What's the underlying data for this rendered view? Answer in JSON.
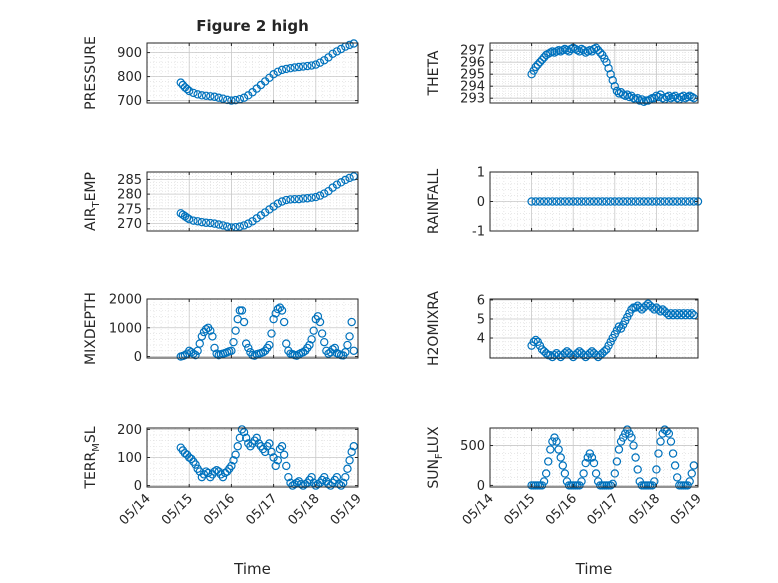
{
  "figure": {
    "title": "Figure 2 high",
    "xlabel": "Time"
  },
  "chart_data": [
    {
      "id": "pressure",
      "type": "scatter",
      "ylabel": "PRESSURE",
      "ylabel_sub": "",
      "ylim": [
        690,
        940
      ],
      "yticks": [
        700,
        800,
        900
      ],
      "marker_color": "#0072BD",
      "xlim": [
        "05/14",
        "05/19"
      ],
      "xticks": [
        "05/14",
        "05/15",
        "05/16",
        "05/17",
        "05/18",
        "05/19"
      ],
      "x": [
        14.8,
        14.85,
        14.9,
        14.95,
        15.0,
        15.1,
        15.2,
        15.3,
        15.4,
        15.5,
        15.6,
        15.7,
        15.8,
        15.9,
        16.0,
        16.1,
        16.2,
        16.3,
        16.4,
        16.5,
        16.6,
        16.7,
        16.8,
        16.9,
        17.0,
        17.1,
        17.2,
        17.3,
        17.4,
        17.5,
        17.6,
        17.7,
        17.8,
        17.9,
        18.0,
        18.1,
        18.2,
        18.3,
        18.4,
        18.5,
        18.6,
        18.7,
        18.8,
        18.9
      ],
      "y": [
        775,
        765,
        755,
        748,
        740,
        732,
        726,
        722,
        720,
        718,
        716,
        712,
        708,
        703,
        700,
        702,
        706,
        712,
        722,
        735,
        750,
        765,
        780,
        795,
        810,
        820,
        828,
        832,
        835,
        838,
        840,
        842,
        844,
        846,
        850,
        858,
        868,
        880,
        895,
        905,
        915,
        925,
        932,
        938
      ]
    },
    {
      "id": "theta",
      "type": "scatter",
      "ylabel": "THETA",
      "ylabel_sub": "",
      "ylim": [
        292.6,
        297.6
      ],
      "yticks": [
        293,
        294,
        295,
        296,
        297
      ],
      "marker_color": "#0072BD",
      "xlim": [
        "05/14",
        "05/19"
      ],
      "xticks": [
        "05/14",
        "05/15",
        "05/16",
        "05/17",
        "05/18",
        "05/19"
      ],
      "x": [
        15.0,
        15.05,
        15.1,
        15.15,
        15.2,
        15.25,
        15.3,
        15.35,
        15.4,
        15.45,
        15.5,
        15.55,
        15.6,
        15.65,
        15.7,
        15.75,
        15.8,
        15.85,
        15.9,
        15.95,
        16.0,
        16.05,
        16.1,
        16.15,
        16.2,
        16.25,
        16.3,
        16.35,
        16.4,
        16.45,
        16.5,
        16.55,
        16.6,
        16.65,
        16.7,
        16.75,
        16.8,
        16.85,
        16.9,
        16.95,
        17.0,
        17.05,
        17.1,
        17.15,
        17.2,
        17.25,
        17.3,
        17.35,
        17.4,
        17.45,
        17.5,
        17.55,
        17.6,
        17.65,
        17.7,
        17.75,
        17.8,
        17.85,
        17.9,
        17.95,
        18.0,
        18.05,
        18.1,
        18.15,
        18.2,
        18.25,
        18.3,
        18.35,
        18.4,
        18.45,
        18.5,
        18.55,
        18.6,
        18.65,
        18.7,
        18.75,
        18.8,
        18.85,
        18.9
      ],
      "y": [
        295.0,
        295.3,
        295.6,
        295.8,
        296.0,
        296.2,
        296.4,
        296.6,
        296.7,
        296.8,
        296.9,
        296.8,
        296.9,
        297.0,
        296.9,
        297.0,
        297.1,
        297.0,
        296.9,
        297.1,
        297.2,
        297.1,
        297.0,
        296.9,
        297.1,
        297.0,
        296.8,
        296.9,
        297.0,
        296.9,
        297.1,
        297.2,
        297.0,
        296.8,
        296.6,
        296.3,
        296.0,
        295.5,
        295.0,
        294.5,
        294.0,
        293.6,
        293.4,
        293.5,
        293.3,
        293.2,
        293.3,
        293.1,
        293.2,
        293.0,
        292.9,
        293.0,
        292.8,
        292.9,
        292.7,
        292.8,
        292.8,
        292.9,
        293.0,
        293.0,
        293.2,
        293.1,
        293.3,
        293.0,
        292.9,
        293.1,
        293.2,
        293.0,
        293.1,
        293.2,
        293.0,
        292.9,
        293.1,
        293.2,
        293.0,
        293.1,
        293.2,
        293.1,
        293.0
      ]
    },
    {
      "id": "air_temp",
      "type": "scatter",
      "ylabel": "AIR",
      "ylabel_sub": "T",
      "ylabel_suffix": "EMP",
      "ylim": [
        267.5,
        287.5
      ],
      "yticks": [
        270,
        275,
        280,
        285
      ],
      "marker_color": "#0072BD",
      "xlim": [
        "05/14",
        "05/19"
      ],
      "xticks": [
        "05/14",
        "05/15",
        "05/16",
        "05/17",
        "05/18",
        "05/19"
      ],
      "x": [
        14.8,
        14.85,
        14.9,
        14.95,
        15.0,
        15.1,
        15.2,
        15.3,
        15.4,
        15.5,
        15.6,
        15.7,
        15.8,
        15.9,
        16.0,
        16.1,
        16.2,
        16.3,
        16.4,
        16.5,
        16.6,
        16.7,
        16.8,
        16.9,
        17.0,
        17.1,
        17.2,
        17.3,
        17.4,
        17.5,
        17.6,
        17.7,
        17.8,
        17.9,
        18.0,
        18.1,
        18.2,
        18.3,
        18.4,
        18.5,
        18.6,
        18.7,
        18.8,
        18.9
      ],
      "y": [
        273.5,
        273.0,
        272.5,
        272.0,
        271.5,
        271.0,
        270.8,
        270.5,
        270.3,
        270.2,
        270.0,
        269.7,
        269.4,
        269.0,
        268.7,
        268.8,
        269.0,
        269.4,
        270.0,
        270.8,
        271.8,
        272.8,
        273.8,
        274.8,
        275.8,
        276.8,
        277.5,
        278.0,
        278.2,
        278.3,
        278.3,
        278.5,
        278.6,
        278.8,
        279.0,
        279.5,
        280.2,
        281.0,
        282.2,
        283.2,
        284.0,
        284.8,
        285.5,
        286.0
      ]
    },
    {
      "id": "rainfall",
      "type": "scatter",
      "ylabel": "RAINFALL",
      "ylabel_sub": "",
      "ylim": [
        -1,
        1
      ],
      "yticks": [
        -1,
        0,
        1
      ],
      "marker_color": "#0072BD",
      "xlim": [
        "05/14",
        "05/19"
      ],
      "xticks": [
        "05/14",
        "05/15",
        "05/16",
        "05/17",
        "05/18",
        "05/19"
      ],
      "x": [
        15.0,
        15.1,
        15.2,
        15.3,
        15.4,
        15.5,
        15.6,
        15.7,
        15.8,
        15.9,
        16.0,
        16.1,
        16.2,
        16.3,
        16.4,
        16.5,
        16.6,
        16.7,
        16.8,
        16.9,
        17.0,
        17.1,
        17.2,
        17.3,
        17.4,
        17.5,
        17.6,
        17.7,
        17.8,
        17.9,
        18.0,
        18.1,
        18.2,
        18.3,
        18.4,
        18.5,
        18.6,
        18.7,
        18.8,
        18.9,
        19.0
      ],
      "y": [
        0,
        0,
        0,
        0,
        0,
        0,
        0,
        0,
        0,
        0,
        0,
        0,
        0,
        0,
        0,
        0,
        0,
        0,
        0,
        0,
        0,
        0,
        0,
        0,
        0,
        0,
        0,
        0,
        0,
        0,
        0,
        0,
        0,
        0,
        0,
        0,
        0,
        0,
        0,
        0,
        0
      ]
    },
    {
      "id": "mixdepth",
      "type": "scatter",
      "ylabel": "MIXDEPTH",
      "ylabel_sub": "",
      "ylim": [
        -50,
        2000
      ],
      "yticks": [
        0,
        1000,
        2000
      ],
      "marker_color": "#0072BD",
      "xlim": [
        "05/14",
        "05/19"
      ],
      "xticks": [
        "05/14",
        "05/15",
        "05/16",
        "05/17",
        "05/18",
        "05/19"
      ],
      "x": [
        14.8,
        14.85,
        14.9,
        14.95,
        15.0,
        15.05,
        15.1,
        15.15,
        15.2,
        15.25,
        15.3,
        15.35,
        15.4,
        15.45,
        15.5,
        15.55,
        15.6,
        15.65,
        15.7,
        15.75,
        15.8,
        15.85,
        15.9,
        15.95,
        16.0,
        16.05,
        16.1,
        16.15,
        16.2,
        16.25,
        16.3,
        16.35,
        16.4,
        16.45,
        16.5,
        16.55,
        16.6,
        16.65,
        16.7,
        16.75,
        16.8,
        16.85,
        16.9,
        16.95,
        17.0,
        17.05,
        17.1,
        17.15,
        17.2,
        17.25,
        17.3,
        17.35,
        17.4,
        17.45,
        17.5,
        17.55,
        17.6,
        17.65,
        17.7,
        17.75,
        17.8,
        17.85,
        17.9,
        17.95,
        18.0,
        18.05,
        18.1,
        18.15,
        18.2,
        18.25,
        18.3,
        18.35,
        18.4,
        18.45,
        18.5,
        18.55,
        18.6,
        18.65,
        18.7,
        18.75,
        18.8,
        18.85,
        18.9
      ],
      "y": [
        0,
        20,
        50,
        100,
        200,
        150,
        100,
        50,
        200,
        450,
        700,
        850,
        950,
        1000,
        900,
        700,
        300,
        100,
        50,
        80,
        100,
        120,
        150,
        180,
        200,
        500,
        900,
        1300,
        1600,
        1600,
        1200,
        450,
        300,
        150,
        50,
        30,
        80,
        100,
        120,
        150,
        200,
        300,
        400,
        800,
        1300,
        1500,
        1650,
        1700,
        1600,
        1200,
        450,
        200,
        100,
        80,
        50,
        30,
        80,
        120,
        150,
        200,
        300,
        400,
        600,
        900,
        1300,
        1400,
        1200,
        800,
        500,
        200,
        100,
        150,
        250,
        300,
        120,
        80,
        50,
        40,
        150,
        400,
        700,
        1200,
        200
      ]
    },
    {
      "id": "h2omixra",
      "type": "scatter",
      "ylabel": "H2OMIXRA",
      "ylabel_sub": "",
      "ylim": [
        2.95,
        6.05
      ],
      "yticks": [
        4,
        5,
        6
      ],
      "marker_color": "#0072BD",
      "xlim": [
        "05/14",
        "05/19"
      ],
      "xticks": [
        "05/14",
        "05/15",
        "05/16",
        "05/17",
        "05/18",
        "05/19"
      ],
      "x": [
        15.0,
        15.05,
        15.1,
        15.15,
        15.2,
        15.25,
        15.3,
        15.35,
        15.4,
        15.45,
        15.5,
        15.55,
        15.6,
        15.65,
        15.7,
        15.75,
        15.8,
        15.85,
        15.9,
        15.95,
        16.0,
        16.05,
        16.1,
        16.15,
        16.2,
        16.25,
        16.3,
        16.35,
        16.4,
        16.45,
        16.5,
        16.55,
        16.6,
        16.65,
        16.7,
        16.75,
        16.8,
        16.85,
        16.9,
        16.95,
        17.0,
        17.05,
        17.1,
        17.15,
        17.2,
        17.25,
        17.3,
        17.35,
        17.4,
        17.45,
        17.5,
        17.55,
        17.6,
        17.65,
        17.7,
        17.75,
        17.8,
        17.85,
        17.9,
        17.95,
        18.0,
        18.05,
        18.1,
        18.15,
        18.2,
        18.25,
        18.3,
        18.35,
        18.4,
        18.45,
        18.5,
        18.55,
        18.6,
        18.65,
        18.7,
        18.75,
        18.8,
        18.85,
        18.9
      ],
      "y": [
        3.6,
        3.8,
        3.9,
        3.8,
        3.6,
        3.4,
        3.3,
        3.2,
        3.1,
        3.1,
        3.0,
        3.1,
        3.2,
        3.1,
        3.0,
        3.1,
        3.2,
        3.3,
        3.2,
        3.1,
        3.0,
        3.1,
        3.2,
        3.3,
        3.2,
        3.1,
        3.0,
        3.1,
        3.2,
        3.3,
        3.2,
        3.1,
        3.0,
        3.1,
        3.2,
        3.3,
        3.4,
        3.6,
        3.8,
        4.0,
        4.2,
        4.4,
        4.6,
        4.5,
        4.7,
        4.9,
        5.1,
        5.3,
        5.5,
        5.6,
        5.6,
        5.7,
        5.6,
        5.5,
        5.6,
        5.7,
        5.8,
        5.7,
        5.6,
        5.5,
        5.6,
        5.5,
        5.4,
        5.5,
        5.4,
        5.3,
        5.2,
        5.3,
        5.2,
        5.3,
        5.2,
        5.3,
        5.2,
        5.3,
        5.2,
        5.3,
        5.2,
        5.3,
        5.2
      ]
    },
    {
      "id": "terr_msl",
      "type": "scatter",
      "ylabel": "TERR",
      "ylabel_sub": "M",
      "ylabel_suffix": "SL",
      "ylim": [
        -5,
        205
      ],
      "yticks": [
        0,
        100,
        200
      ],
      "marker_color": "#0072BD",
      "xlim": [
        "05/14",
        "05/19"
      ],
      "xticks": [
        "05/14",
        "05/15",
        "05/16",
        "05/17",
        "05/18",
        "05/19"
      ],
      "x": [
        14.8,
        14.85,
        14.9,
        14.95,
        15.0,
        15.05,
        15.1,
        15.15,
        15.2,
        15.25,
        15.3,
        15.35,
        15.4,
        15.45,
        15.5,
        15.55,
        15.6,
        15.65,
        15.7,
        15.75,
        15.8,
        15.85,
        15.9,
        15.95,
        16.0,
        16.05,
        16.1,
        16.15,
        16.2,
        16.25,
        16.3,
        16.35,
        16.4,
        16.45,
        16.5,
        16.55,
        16.6,
        16.65,
        16.7,
        16.75,
        16.8,
        16.85,
        16.9,
        16.95,
        17.0,
        17.05,
        17.1,
        17.15,
        17.2,
        17.25,
        17.3,
        17.35,
        17.4,
        17.45,
        17.5,
        17.55,
        17.6,
        17.65,
        17.7,
        17.75,
        17.8,
        17.85,
        17.9,
        17.95,
        18.0,
        18.05,
        18.1,
        18.15,
        18.2,
        18.25,
        18.3,
        18.35,
        18.4,
        18.45,
        18.5,
        18.55,
        18.6,
        18.65,
        18.7,
        18.75,
        18.8,
        18.85,
        18.9
      ],
      "y": [
        135,
        125,
        115,
        110,
        100,
        95,
        85,
        75,
        60,
        50,
        30,
        40,
        50,
        45,
        30,
        40,
        50,
        55,
        50,
        40,
        30,
        45,
        50,
        60,
        70,
        90,
        110,
        140,
        170,
        200,
        190,
        170,
        150,
        140,
        150,
        160,
        170,
        150,
        140,
        130,
        120,
        140,
        150,
        120,
        100,
        70,
        90,
        130,
        140,
        110,
        70,
        30,
        10,
        0,
        5,
        10,
        15,
        5,
        0,
        5,
        10,
        20,
        30,
        10,
        0,
        5,
        10,
        20,
        30,
        15,
        5,
        0,
        10,
        20,
        30,
        5,
        0,
        10,
        30,
        60,
        90,
        120,
        140
      ]
    },
    {
      "id": "sun_flux",
      "type": "scatter",
      "ylabel": "SUN",
      "ylabel_sub": "F",
      "ylabel_suffix": "LUX",
      "ylim": [
        -20,
        720
      ],
      "yticks": [
        0,
        500
      ],
      "marker_color": "#0072BD",
      "xlim": [
        "05/14",
        "05/19"
      ],
      "xticks": [
        "05/14",
        "05/15",
        "05/16",
        "05/17",
        "05/18",
        "05/19"
      ],
      "x": [
        15.0,
        15.05,
        15.1,
        15.15,
        15.2,
        15.25,
        15.3,
        15.35,
        15.4,
        15.45,
        15.5,
        15.55,
        15.6,
        15.65,
        15.7,
        15.75,
        15.8,
        15.85,
        15.9,
        15.95,
        16.0,
        16.05,
        16.1,
        16.15,
        16.2,
        16.25,
        16.3,
        16.35,
        16.4,
        16.45,
        16.5,
        16.55,
        16.6,
        16.65,
        16.7,
        16.75,
        16.8,
        16.85,
        16.9,
        16.95,
        17.0,
        17.05,
        17.1,
        17.15,
        17.2,
        17.25,
        17.3,
        17.35,
        17.4,
        17.45,
        17.5,
        17.55,
        17.6,
        17.65,
        17.7,
        17.75,
        17.8,
        17.85,
        17.9,
        17.95,
        18.0,
        18.05,
        18.1,
        18.15,
        18.2,
        18.25,
        18.3,
        18.35,
        18.4,
        18.45,
        18.5,
        18.55,
        18.6,
        18.65,
        18.7,
        18.75,
        18.8,
        18.85,
        18.9
      ],
      "y": [
        0,
        0,
        0,
        0,
        0,
        0,
        50,
        150,
        300,
        450,
        550,
        600,
        550,
        450,
        350,
        250,
        150,
        50,
        0,
        0,
        0,
        0,
        0,
        0,
        50,
        150,
        280,
        350,
        400,
        350,
        280,
        150,
        50,
        0,
        0,
        0,
        0,
        0,
        0,
        20,
        150,
        300,
        450,
        550,
        600,
        650,
        700,
        650,
        600,
        500,
        350,
        200,
        50,
        0,
        0,
        0,
        0,
        0,
        0,
        50,
        200,
        400,
        550,
        650,
        700,
        680,
        650,
        550,
        400,
        250,
        100,
        0,
        0,
        0,
        0,
        0,
        50,
        150,
        250
      ]
    }
  ]
}
